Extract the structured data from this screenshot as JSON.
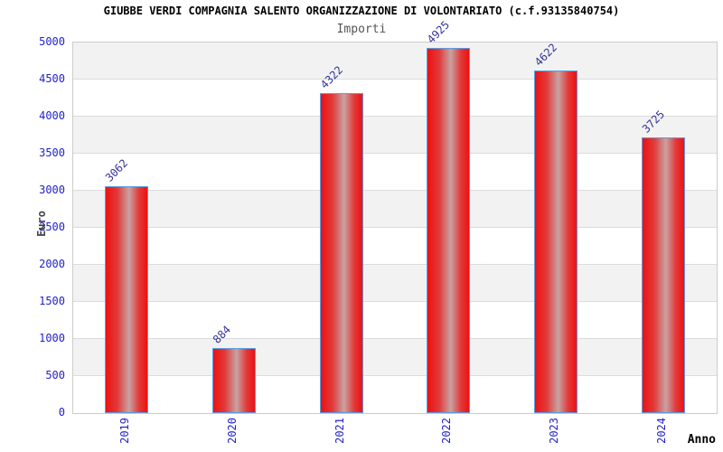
{
  "header": {
    "title": "GIUBBE VERDI COMPAGNIA SALENTO ORGANIZZAZIONE DI VOLONTARIATO (c.f.93135840754)",
    "subtitle": "Importi"
  },
  "chart_data": {
    "type": "bar",
    "title": "GIUBBE VERDI COMPAGNIA SALENTO ORGANIZZAZIONE DI VOLONTARIATO (c.f.93135840754)",
    "subtitle": "Importi",
    "categories": [
      "2019",
      "2020",
      "2021",
      "2022",
      "2023",
      "2024"
    ],
    "values": [
      3062,
      884,
      4322,
      4925,
      4622,
      3725
    ],
    "xlabel": "Anno",
    "ylabel": "Euro",
    "ylim": [
      0,
      5000
    ],
    "yticks": [
      0,
      500,
      1000,
      1500,
      2000,
      2500,
      3000,
      3500,
      4000,
      4500,
      5000
    ],
    "grid": "horizontal alternating bands",
    "legend_position": "none",
    "bar_value_labels": [
      "3062",
      "884",
      "4322",
      "4925",
      "4622",
      "3725"
    ]
  },
  "colors": {
    "bar_fill_edge": "#ee1111",
    "bar_fill_center": "#c9a2a2",
    "bar_border": "#5b9ce0",
    "axis_tick_label": "#2222cc",
    "value_label": "#333399",
    "band_shaded": "#f2f2f2",
    "band_plain": "#ffffff",
    "gridline": "#dcdcdc",
    "plot_border": "#cccccc",
    "title_color": "#000000",
    "subtitle_color": "#555555",
    "axis_title_color": "#444444"
  }
}
